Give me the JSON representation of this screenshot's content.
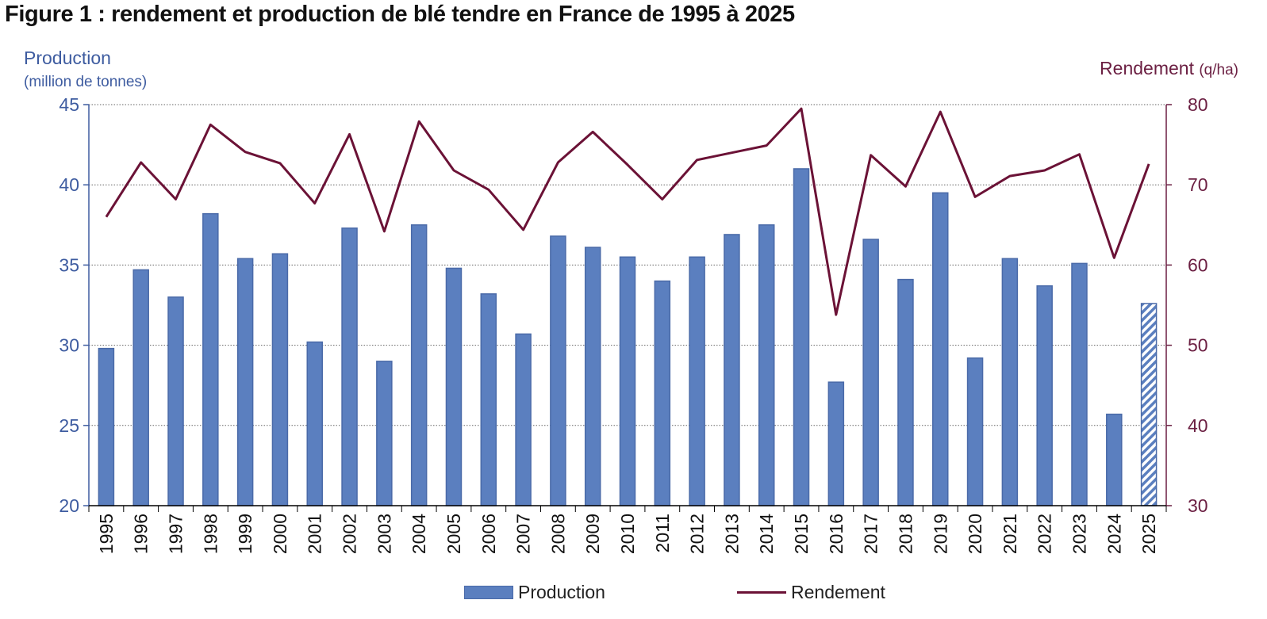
{
  "title": "Figure 1 : rendement et production de blé tendre en France de 1995 à 2025",
  "left_axis": {
    "label_line1": "Production",
    "label_line2": "(million de tonnes)"
  },
  "right_axis": {
    "label": "Rendement",
    "unit": "(q/ha)"
  },
  "legend": {
    "production": "Production",
    "rendement": "Rendement"
  },
  "colors": {
    "bar": "#5b7fbf",
    "bar_border": "#4a6aa8",
    "line": "#6b1236",
    "left_axis": "#3e5ca0",
    "right_axis": "#6b1f42"
  },
  "chart_data": {
    "type": "bar+line",
    "title": "Figure 1 : rendement et production de blé tendre en France de 1995 à 2025",
    "categories": [
      "1995",
      "1996",
      "1997",
      "1998",
      "1999",
      "2000",
      "2001",
      "2002",
      "2003",
      "2004",
      "2005",
      "2006",
      "2007",
      "2008",
      "2009",
      "2010",
      "2011",
      "2012",
      "2013",
      "2014",
      "2015",
      "2016",
      "2017",
      "2018",
      "2019",
      "2020",
      "2021",
      "2022",
      "2023",
      "2024",
      "2025"
    ],
    "series": [
      {
        "name": "Production",
        "kind": "bar",
        "axis": "left",
        "values": [
          29.8,
          34.7,
          33.0,
          38.2,
          35.4,
          35.7,
          30.2,
          37.3,
          29.0,
          37.5,
          34.8,
          33.2,
          30.7,
          36.8,
          36.1,
          35.5,
          34.0,
          35.5,
          36.9,
          37.5,
          41.0,
          27.7,
          36.6,
          34.1,
          39.5,
          29.2,
          35.4,
          33.7,
          35.1,
          25.7,
          32.6
        ],
        "hatched_last": true
      },
      {
        "name": "Rendement",
        "kind": "line",
        "axis": "right",
        "values": [
          66.0,
          72.8,
          68.2,
          77.5,
          74.1,
          72.7,
          67.7,
          76.3,
          64.2,
          77.9,
          71.8,
          69.4,
          64.4,
          72.8,
          76.6,
          72.5,
          68.2,
          73.1,
          74.0,
          74.9,
          79.5,
          53.8,
          73.7,
          69.8,
          79.1,
          68.5,
          71.1,
          71.8,
          73.8,
          60.9,
          72.6
        ]
      }
    ],
    "ylabel_left": "Production (million de tonnes)",
    "ylabel_right": "Rendement (q/ha)",
    "ylim_left": [
      20,
      45
    ],
    "yticks_left": [
      20,
      25,
      30,
      35,
      40,
      45
    ],
    "ylim_right": [
      30,
      80
    ],
    "yticks_right": [
      30,
      40,
      50,
      60,
      70,
      80
    ],
    "grid": "horizontal dotted",
    "legend_position": "bottom"
  }
}
